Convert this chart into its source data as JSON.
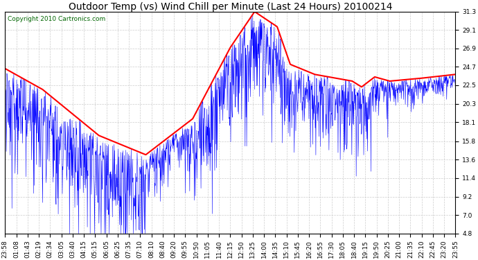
{
  "title": "Outdoor Temp (vs) Wind Chill per Minute (Last 24 Hours) 20100214",
  "copyright_text": "Copyright 2010 Cartronics.com",
  "background_color": "#ffffff",
  "plot_bg_color": "#ffffff",
  "grid_color": "#cccccc",
  "yticks": [
    4.8,
    7.0,
    9.2,
    11.4,
    13.6,
    15.8,
    18.1,
    20.3,
    22.5,
    24.7,
    26.9,
    29.1,
    31.3
  ],
  "ylim": [
    4.8,
    31.3
  ],
  "x_labels": [
    "23:58",
    "01:08",
    "01:43",
    "02:19",
    "02:34",
    "03:05",
    "03:40",
    "04:15",
    "05:15",
    "06:05",
    "06:25",
    "07:35",
    "07:10",
    "08:10",
    "08:40",
    "09:20",
    "09:55",
    "10:50",
    "11:05",
    "11:40",
    "12:15",
    "12:50",
    "13:25",
    "14:00",
    "14:35",
    "15:10",
    "15:45",
    "16:20",
    "16:55",
    "17:30",
    "18:05",
    "18:40",
    "19:15",
    "19:50",
    "20:25",
    "21:00",
    "21:35",
    "22:10",
    "22:45",
    "23:20",
    "23:55"
  ],
  "wind_chill_color": "#0000ff",
  "outdoor_temp_color": "#ff0000",
  "title_fontsize": 10,
  "tick_fontsize": 6.5,
  "copyright_fontsize": 6.5,
  "copyright_color": "#006600",
  "figwidth": 6.9,
  "figheight": 3.75,
  "dpi": 100
}
